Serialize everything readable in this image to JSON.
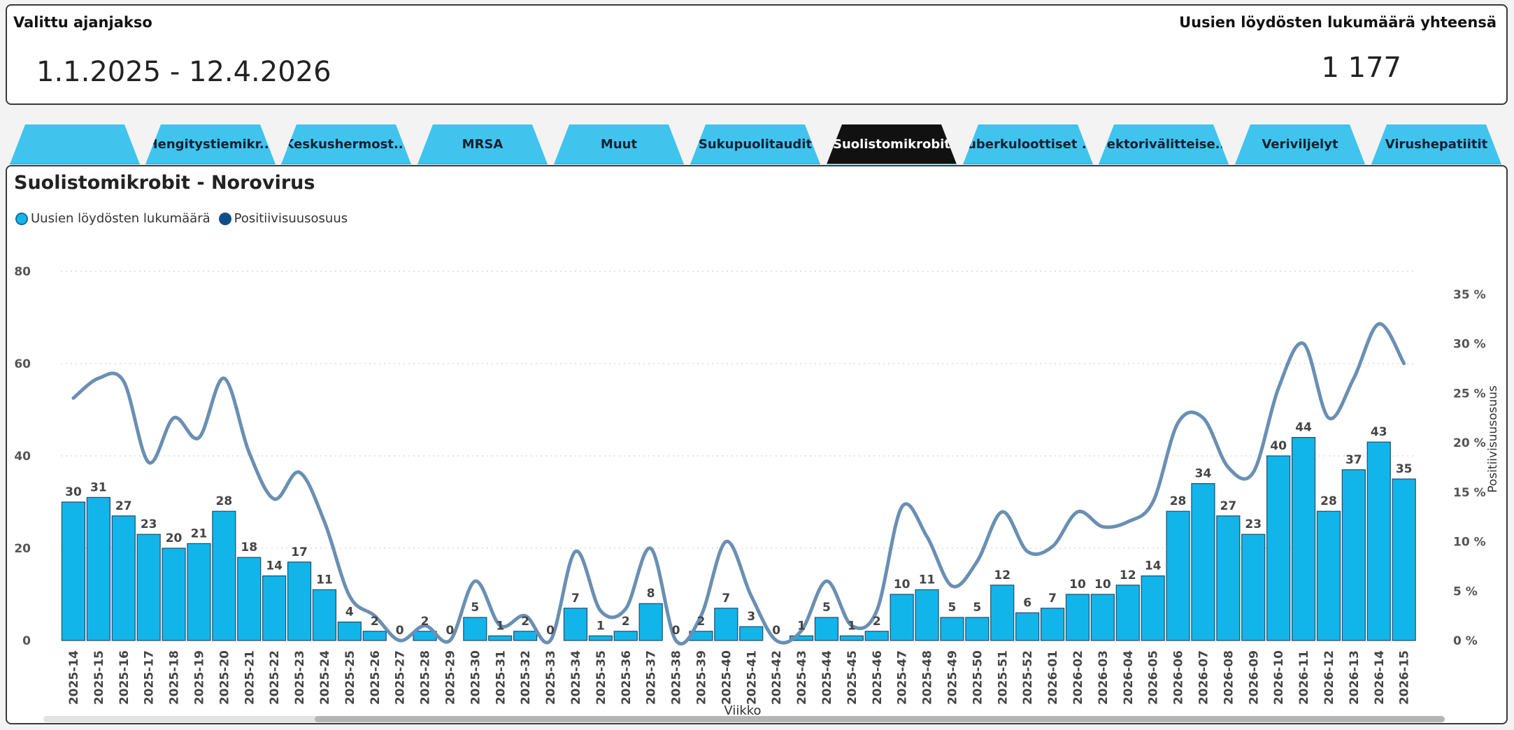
{
  "header": {
    "period_label": "Valittu ajanjakso",
    "period_value": "1.1.2025 - 12.4.2026",
    "total_label": "Uusien löydösten lukumäärä yhteensä",
    "total_value": "1 177"
  },
  "tabs": [
    "",
    "Hengitystiemikr...",
    "Keskushermost...",
    "MRSA",
    "Muut",
    "Sukupuolitaudit",
    "Suolistomikrobit",
    "Tuberkuloottiset ...",
    "Vektorivälitteise...",
    "Veriviljelyt",
    "Virushepatiitit"
  ],
  "active_tab": 6,
  "panel": {
    "title": "Suolistomikrobit - Norovirus",
    "legend": [
      {
        "label": "Uusien löydösten lukumäärä",
        "color": "#12b5ea"
      },
      {
        "label": "Positiivisuusosuus",
        "color": "#0f4d8a"
      }
    ]
  },
  "colors": {
    "bar": "#12b5ea",
    "bar_border": "#244a66",
    "line": "#6a8fb3",
    "accent": "#40c4ee"
  },
  "chart_data": {
    "type": "bar+line",
    "xlabel": "Viikko",
    "y1_ticks": [
      "0",
      "20",
      "40",
      "60",
      "80"
    ],
    "y1lim": [
      0,
      80
    ],
    "y2label": "Positiivisuusosuus",
    "y2_ticks": [
      "0 %",
      "5 %",
      "10 %",
      "15 %",
      "20 %",
      "25 %",
      "30 %",
      "35 %"
    ],
    "y2lim": [
      0,
      37
    ],
    "categories": [
      "2025-14",
      "2025-15",
      "2025-16",
      "2025-17",
      "2025-18",
      "2025-19",
      "2025-20",
      "2025-21",
      "2025-22",
      "2025-23",
      "2025-24",
      "2025-25",
      "2025-26",
      "2025-27",
      "2025-28",
      "2025-29",
      "2025-30",
      "2025-31",
      "2025-32",
      "2025-33",
      "2025-34",
      "2025-35",
      "2025-36",
      "2025-37",
      "2025-38",
      "2025-39",
      "2025-40",
      "2025-41",
      "2025-42",
      "2025-43",
      "2025-44",
      "2025-45",
      "2025-46",
      "2025-47",
      "2025-48",
      "2025-49",
      "2025-50",
      "2025-51",
      "2025-52",
      "2026-01",
      "2026-02",
      "2026-03",
      "2026-04",
      "2026-05",
      "2026-06",
      "2026-07",
      "2026-08",
      "2026-09",
      "2026-10",
      "2026-11",
      "2026-12",
      "2026-13",
      "2026-14",
      "2026-15"
    ],
    "series": [
      {
        "name": "Uusien löydösten lukumäärä",
        "type": "bar",
        "values": [
          30,
          31,
          27,
          23,
          20,
          21,
          28,
          18,
          14,
          17,
          11,
          4,
          2,
          0,
          2,
          0,
          5,
          1,
          2,
          0,
          7,
          1,
          2,
          8,
          0,
          2,
          7,
          3,
          0,
          1,
          5,
          1,
          2,
          10,
          11,
          5,
          5,
          12,
          6,
          7,
          10,
          10,
          12,
          14,
          28,
          34,
          27,
          23,
          40,
          44,
          28,
          37,
          43,
          35
        ]
      },
      {
        "name": "Positiivisuusosuus",
        "type": "line",
        "values": [
          24.5,
          26.5,
          26.2,
          18,
          22.5,
          20.5,
          26.5,
          19,
          14.3,
          17,
          12,
          4.5,
          2.5,
          0,
          1.5,
          0,
          6,
          1.5,
          2.5,
          0,
          9,
          3,
          3.2,
          9.3,
          0,
          2.5,
          10,
          4.5,
          0,
          1,
          6,
          1.5,
          3,
          13.5,
          10.5,
          5.5,
          8,
          13,
          9,
          9.5,
          13,
          11.5,
          12,
          14,
          22,
          22.5,
          17.5,
          17,
          25.5,
          30,
          22.5,
          26.5,
          32,
          28
        ]
      }
    ]
  }
}
